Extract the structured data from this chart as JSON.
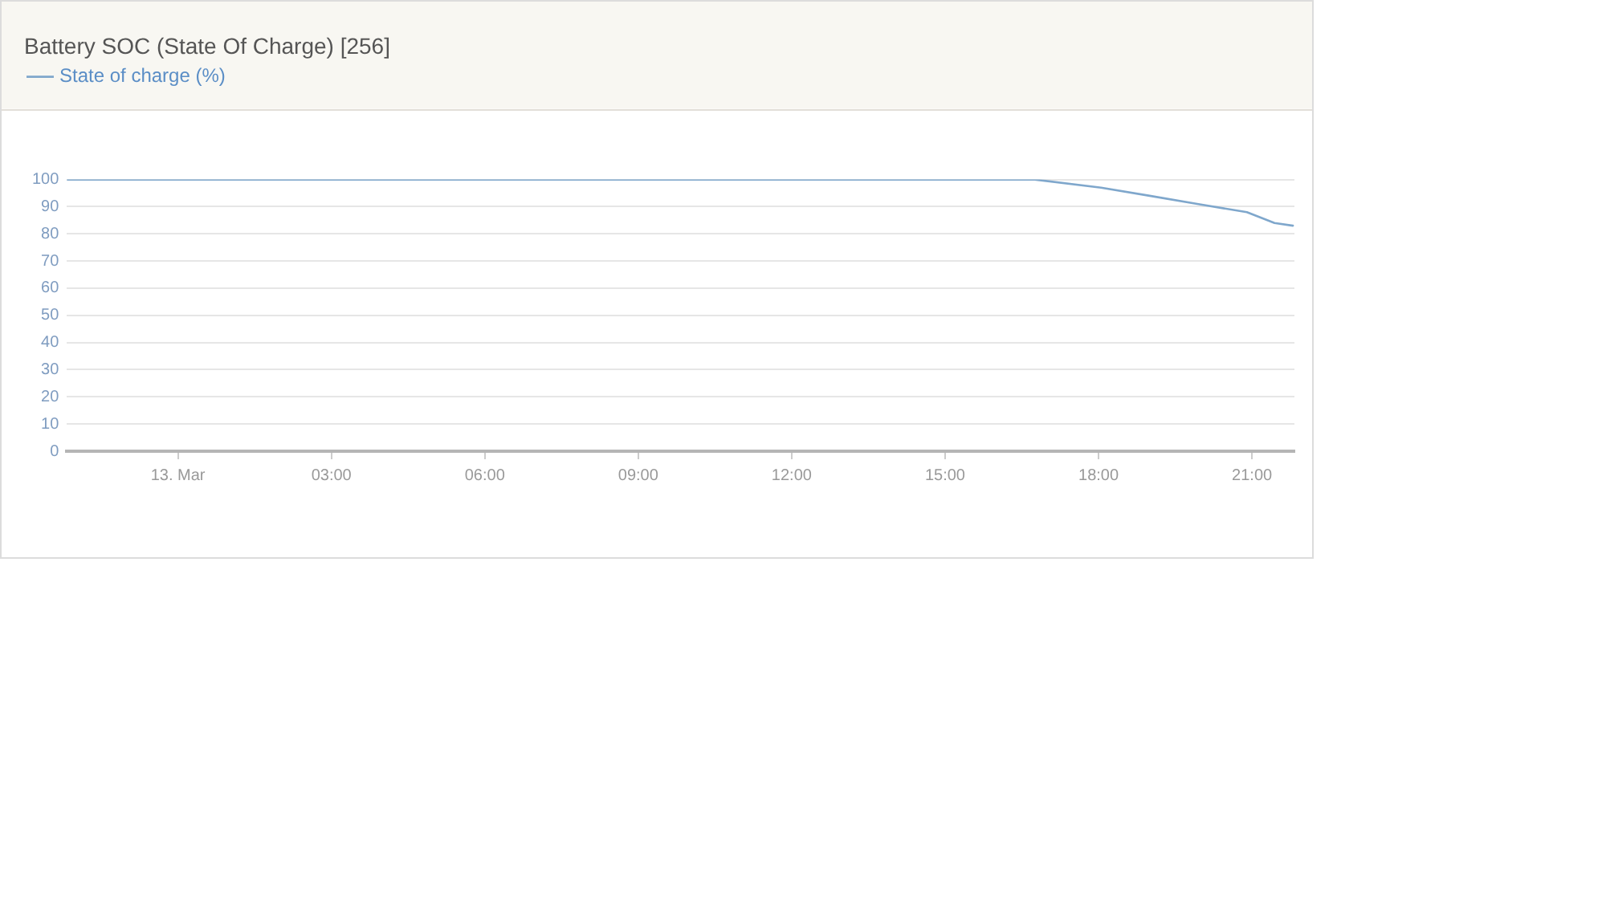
{
  "chart_data": {
    "type": "line",
    "title": "Battery SOC (State Of Charge) [256]",
    "x": [
      -2.17,
      16.75,
      18.05,
      19.0,
      19.93,
      20.9,
      21.44,
      21.8
    ],
    "series": [
      {
        "name": "State of charge (%)",
        "color": "#7fa7cc",
        "values": [
          100,
          100,
          97,
          94,
          91,
          88,
          84,
          83
        ]
      }
    ],
    "xlim": [
      -2.17,
      21.83
    ],
    "xticks": [
      {
        "value": 0,
        "label": "13. Mar"
      },
      {
        "value": 3,
        "label": "03:00"
      },
      {
        "value": 6,
        "label": "06:00"
      },
      {
        "value": 9,
        "label": "09:00"
      },
      {
        "value": 12,
        "label": "12:00"
      },
      {
        "value": 15,
        "label": "15:00"
      },
      {
        "value": 18,
        "label": "18:00"
      },
      {
        "value": 21,
        "label": "21:00"
      }
    ],
    "ylim": [
      0,
      100
    ],
    "yticks": [
      0,
      10,
      20,
      30,
      40,
      50,
      60,
      70,
      80,
      90,
      100
    ],
    "grid": "y",
    "legend": "top left",
    "marker": "none"
  }
}
